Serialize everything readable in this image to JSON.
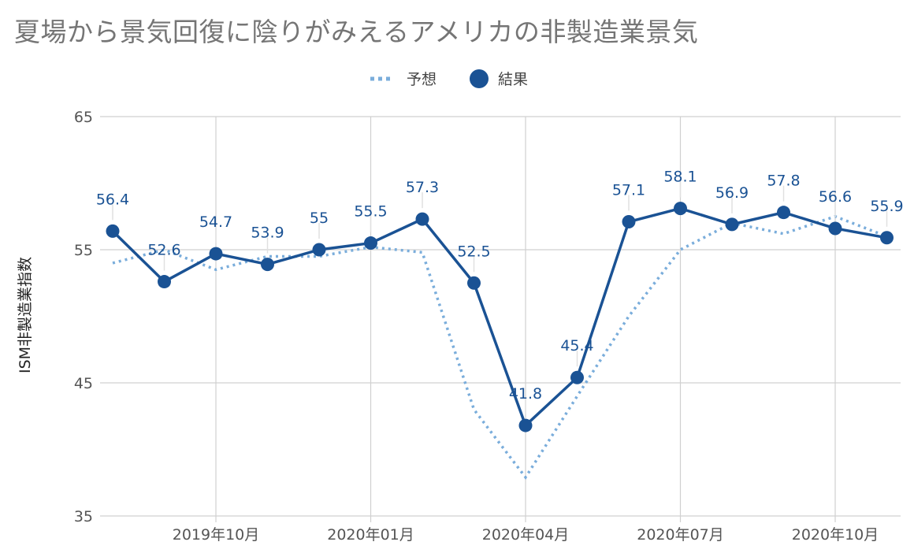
{
  "chart_data": {
    "type": "line",
    "title": "夏場から景気回復に陰りがみえるアメリカの非製造業景気",
    "ylabel": "ISM非製造業指数",
    "ylim": [
      35,
      65
    ],
    "yticks": [
      35,
      45,
      55,
      65
    ],
    "x": [
      "2019-08",
      "2019-09",
      "2019-10",
      "2019-11",
      "2019-12",
      "2020-01",
      "2020-02",
      "2020-03",
      "2020-04",
      "2020-05",
      "2020-06",
      "2020-07",
      "2020-08",
      "2020-09",
      "2020-10",
      "2020-11"
    ],
    "xtick_labels": [
      {
        "index": 2,
        "label": "2019年10月"
      },
      {
        "index": 5,
        "label": "2020年01月"
      },
      {
        "index": 8,
        "label": "2020年04月"
      },
      {
        "index": 11,
        "label": "2020年07月"
      },
      {
        "index": 14,
        "label": "2020年10月"
      }
    ],
    "legend_position": "top-center",
    "grid": true,
    "series": [
      {
        "name": "予想",
        "style": "dotted",
        "color": "#7aaddb",
        "values": [
          54.0,
          55.0,
          53.5,
          54.5,
          54.5,
          55.2,
          54.8,
          43.0,
          37.9,
          44.0,
          50.0,
          55.0,
          57.0,
          56.2,
          57.5,
          56.0
        ]
      },
      {
        "name": "結果",
        "style": "solid-markers",
        "color": "#1a5294",
        "values": [
          56.4,
          52.6,
          54.7,
          53.9,
          55.0,
          55.5,
          57.3,
          52.5,
          41.8,
          45.4,
          57.1,
          58.1,
          56.9,
          57.8,
          56.6,
          55.9
        ],
        "labels": [
          "56.4",
          "52.6",
          "54.7",
          "53.9",
          "55",
          "55.5",
          "57.3",
          "52.5",
          "41.8",
          "45.4",
          "57.1",
          "58.1",
          "56.9",
          "57.8",
          "56.6",
          "55.9"
        ]
      }
    ]
  }
}
